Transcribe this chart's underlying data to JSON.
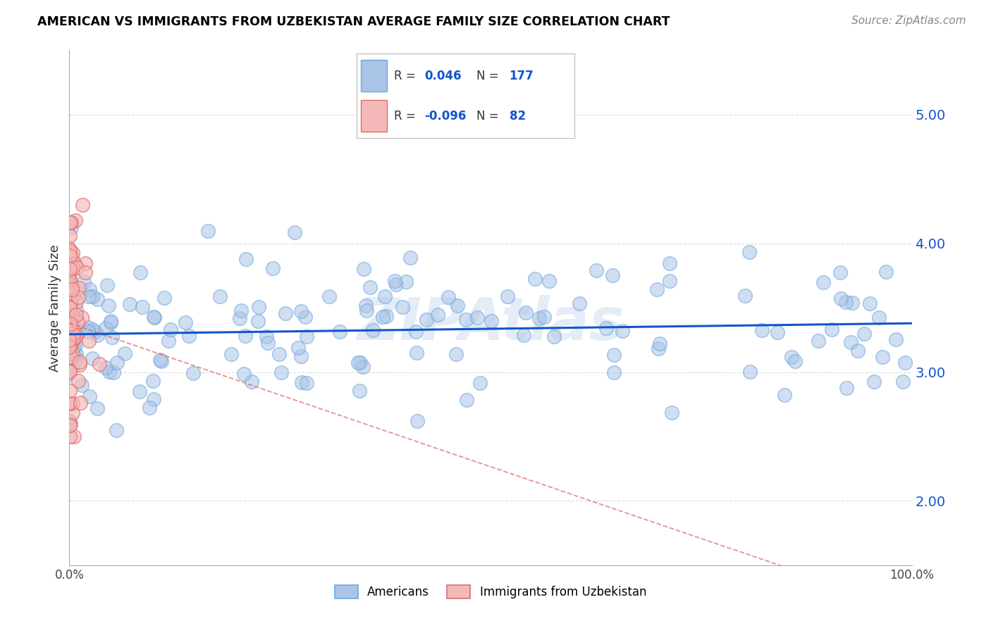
{
  "title": "AMERICAN VS IMMIGRANTS FROM UZBEKISTAN AVERAGE FAMILY SIZE CORRELATION CHART",
  "source": "Source: ZipAtlas.com",
  "ylabel": "Average Family Size",
  "xlim": [
    0,
    1.0
  ],
  "ylim": [
    1.5,
    5.5
  ],
  "yticks": [
    2.0,
    3.0,
    4.0,
    5.0
  ],
  "xticks": [
    0.0,
    1.0
  ],
  "xtick_labels": [
    "0.0%",
    "100.0%"
  ],
  "r_american": 0.046,
  "n_american": 177,
  "r_uzbek": -0.096,
  "n_uzbek": 82,
  "blue_fill": "#aac4e8",
  "blue_edge": "#6fa8dc",
  "pink_fill": "#f4b8b8",
  "pink_edge": "#e06c6c",
  "blue_line_color": "#1155cc",
  "pink_line_color": "#e06060",
  "watermark_color": "#c8daf0",
  "background_color": "#ffffff",
  "grid_color": "#cccccc",
  "title_color": "#000000",
  "source_color": "#888888",
  "legend_val_color": "#1155cc",
  "legend_box_bg": "#ffffff",
  "legend_box_edge": "#bbbbbb"
}
